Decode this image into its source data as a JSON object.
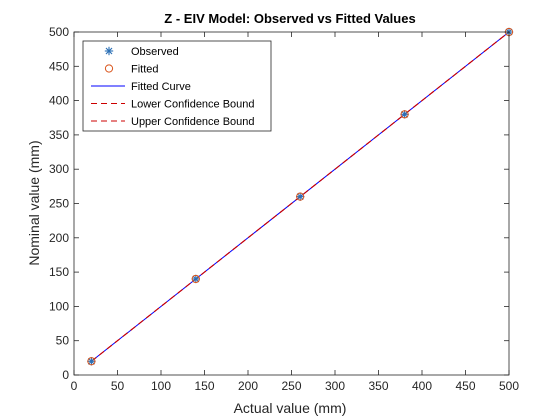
{
  "chart_data": {
    "type": "scatter",
    "title": "Z - EIV Model: Observed vs Fitted Values",
    "xlabel": "Actual value (mm)",
    "ylabel": "Nominal value (mm)",
    "xlim": [
      0,
      500
    ],
    "ylim": [
      0,
      500
    ],
    "xticks": [
      0,
      50,
      100,
      150,
      200,
      250,
      300,
      350,
      400,
      450,
      500
    ],
    "yticks": [
      0,
      50,
      100,
      150,
      200,
      250,
      300,
      350,
      400,
      450,
      500
    ],
    "grid": false,
    "legend_position": "top-left",
    "series": [
      {
        "name": "Observed",
        "kind": "marker-asterisk",
        "color": "#2a6fb5",
        "x": [
          20,
          140,
          260,
          380,
          500
        ],
        "y": [
          20,
          140,
          260,
          380,
          500
        ]
      },
      {
        "name": "Fitted",
        "kind": "marker-circle",
        "color": "#d95319",
        "x": [
          20,
          140,
          260,
          380,
          500
        ],
        "y": [
          20,
          140,
          260,
          380,
          500
        ]
      },
      {
        "name": "Fitted Curve",
        "kind": "line-solid",
        "color": "#0000ff",
        "x": [
          20,
          500
        ],
        "y": [
          20,
          500
        ]
      },
      {
        "name": "Lower Confidence Bound",
        "kind": "line-dashed",
        "color": "#cc0000",
        "x": [
          20,
          500
        ],
        "y": [
          20,
          500
        ]
      },
      {
        "name": "Upper Confidence Bound",
        "kind": "line-dashed",
        "color": "#cc0000",
        "x": [
          20,
          500
        ],
        "y": [
          20,
          500
        ]
      }
    ]
  }
}
